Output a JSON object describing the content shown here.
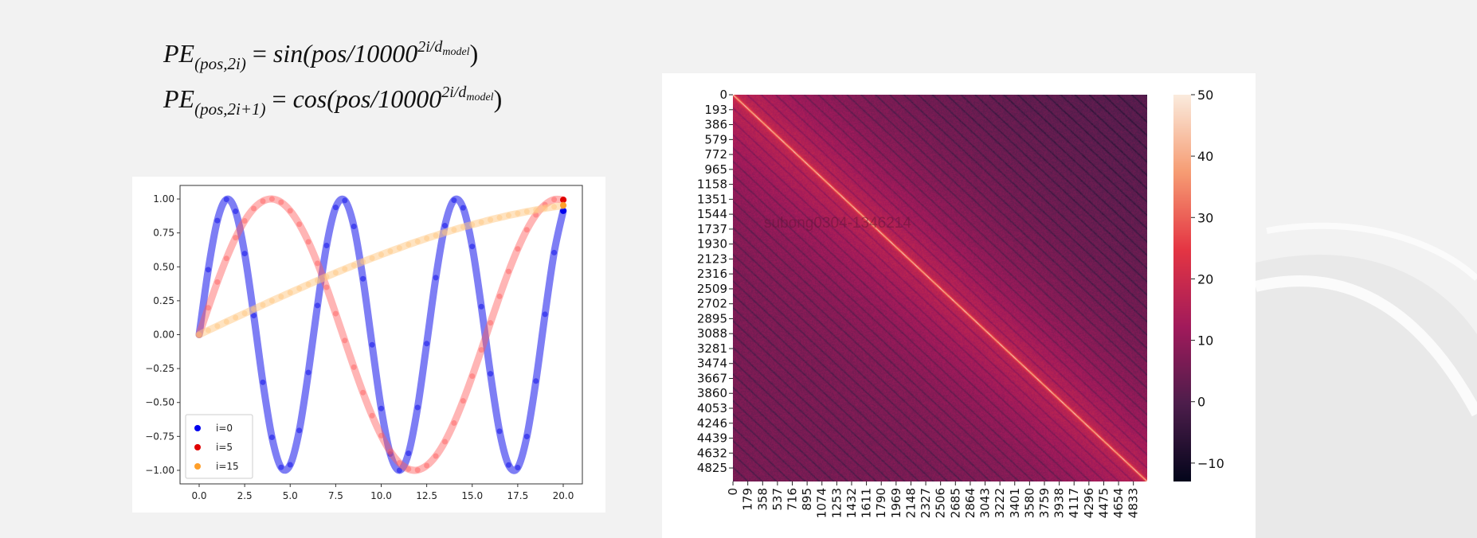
{
  "formulas": {
    "line1": {
      "lhs": "PE",
      "sub": "(pos,2i)",
      "eq": " = ",
      "fn": "sin",
      "arg": "(pos/10000",
      "exp": "2i/d",
      "exp_sub": "model",
      "close": ")"
    },
    "line2": {
      "lhs": "PE",
      "sub": "(pos,2i+1)",
      "eq": " = ",
      "fn": "cos",
      "arg": "(pos/10000",
      "exp": "2i/d",
      "exp_sub": "model",
      "close": ")"
    }
  },
  "watermark": "subong0304-1346214",
  "chart_data": [
    {
      "type": "scatter",
      "title": "",
      "xlabel": "",
      "ylabel": "",
      "xlim": [
        -1.05,
        21.05
      ],
      "ylim": [
        -1.1,
        1.1
      ],
      "x_ticks": [
        "0.0",
        "2.5",
        "5.0",
        "7.5",
        "10.0",
        "12.5",
        "15.0",
        "17.5",
        "20.0"
      ],
      "y_ticks": [
        "1.00",
        "0.75",
        "0.50",
        "0.25",
        "0.00",
        "−0.25",
        "−0.50",
        "−0.75",
        "−1.00"
      ],
      "grid": false,
      "legend_position": "lower-left",
      "x": [
        0,
        0.5,
        1,
        1.5,
        2,
        2.5,
        3,
        3.5,
        4,
        4.5,
        5,
        5.5,
        6,
        6.5,
        7,
        7.5,
        8,
        8.5,
        9,
        9.5,
        10,
        10.5,
        11,
        11.5,
        12,
        12.5,
        13,
        13.5,
        14,
        14.5,
        15,
        15.5,
        16,
        16.5,
        17,
        17.5,
        18,
        18.5,
        19,
        19.5,
        20
      ],
      "series": [
        {
          "name": "i=0",
          "color": "#0000ee",
          "values": [
            0,
            0.479,
            0.841,
            0.997,
            0.909,
            0.598,
            0.141,
            -0.351,
            -0.757,
            -0.978,
            -0.959,
            -0.706,
            -0.279,
            0.215,
            0.657,
            0.938,
            0.989,
            0.798,
            0.412,
            -0.075,
            -0.544,
            -0.88,
            -1.0,
            -0.875,
            -0.537,
            -0.066,
            0.42,
            0.804,
            0.991,
            0.935,
            0.65,
            0.207,
            -0.288,
            -0.712,
            -0.961,
            -0.98,
            -0.751,
            -0.342,
            0.15,
            0.605,
            0.913
          ]
        },
        {
          "name": "i=5",
          "color": "#e00000",
          "values": [
            0,
            0.198,
            0.388,
            0.562,
            0.715,
            0.839,
            0.93,
            0.984,
            1.0,
            0.976,
            0.913,
            0.814,
            0.684,
            0.526,
            0.349,
            0.155,
            -0.043,
            -0.24,
            -0.427,
            -0.597,
            -0.744,
            -0.862,
            -0.945,
            -0.991,
            -0.998,
            -0.965,
            -0.895,
            -0.789,
            -0.651,
            -0.488,
            -0.306,
            -0.112,
            0.087,
            0.282,
            0.466,
            0.632,
            0.773,
            0.883,
            0.958,
            0.996,
            0.994
          ]
        },
        {
          "name": "i=15",
          "color": "#ff9f2a",
          "values": [
            0,
            0.032,
            0.063,
            0.095,
            0.126,
            0.157,
            0.188,
            0.219,
            0.25,
            0.28,
            0.31,
            0.34,
            0.37,
            0.399,
            0.428,
            0.456,
            0.484,
            0.511,
            0.538,
            0.564,
            0.59,
            0.615,
            0.639,
            0.664,
            0.687,
            0.71,
            0.731,
            0.753,
            0.773,
            0.793,
            0.811,
            0.829,
            0.847,
            0.863,
            0.879,
            0.893,
            0.907,
            0.919,
            0.932,
            0.942,
            0.953
          ]
        }
      ]
    },
    {
      "type": "heatmap",
      "title": "",
      "size": 5000,
      "diagonal_value": 50,
      "x_ticks": [
        "0",
        "179",
        "358",
        "537",
        "716",
        "895",
        "1074",
        "1253",
        "1432",
        "1611",
        "1790",
        "1969",
        "2148",
        "2327",
        "2506",
        "2685",
        "2864",
        "3043",
        "3222",
        "3401",
        "3580",
        "3759",
        "3938",
        "4117",
        "4296",
        "4475",
        "4654",
        "4833"
      ],
      "y_ticks": [
        "0",
        "193",
        "386",
        "579",
        "772",
        "965",
        "1158",
        "1351",
        "1544",
        "1737",
        "1930",
        "2123",
        "2316",
        "2509",
        "2702",
        "2895",
        "3088",
        "3281",
        "3474",
        "3667",
        "3860",
        "4053",
        "4246",
        "4439",
        "4632",
        "4825"
      ],
      "colorbar": {
        "range": [
          -13,
          50
        ],
        "ticks": [
          "50",
          "40",
          "30",
          "20",
          "10",
          "0",
          "−10"
        ],
        "tick_values": [
          50,
          40,
          30,
          20,
          10,
          0,
          -10
        ],
        "colormap": "rocket"
      }
    }
  ]
}
